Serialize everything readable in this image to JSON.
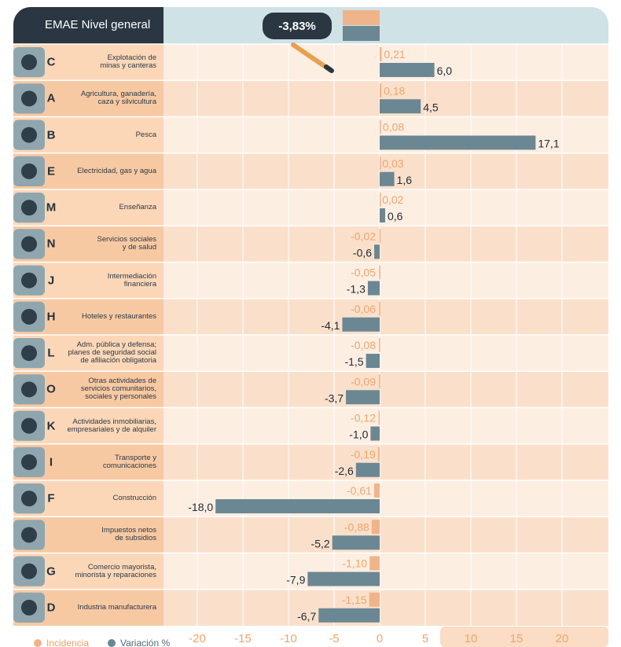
{
  "header": {
    "title": "EMAE Nivel general",
    "total": "-3,83%"
  },
  "legend": {
    "incidencia": "Incidencia",
    "variacion": "Variación %"
  },
  "colors": {
    "incidencia": "#f0b48a",
    "variacion": "#6b8793",
    "header_dark": "#2a3642",
    "header_light": "#cfe2e6"
  },
  "chart_data": {
    "type": "bar",
    "orientation": "horizontal",
    "categories": [
      {
        "letter": "C",
        "label": "Explotación de\nminas y canteras"
      },
      {
        "letter": "A",
        "label": "Agricultura, ganadería,\ncaza y silvicultura"
      },
      {
        "letter": "B",
        "label": "Pesca"
      },
      {
        "letter": "E",
        "label": "Electricidad, gas y agua"
      },
      {
        "letter": "M",
        "label": "Enseñanza"
      },
      {
        "letter": "N",
        "label": "Servicios sociales\ny de salud"
      },
      {
        "letter": "J",
        "label": "Intermediación\nfinanciera"
      },
      {
        "letter": "H",
        "label": "Hoteles y restaurantes"
      },
      {
        "letter": "L",
        "label": "Adm. pública y defensa;\nplanes de seguridad social\nde afiliación obligatoria"
      },
      {
        "letter": "O",
        "label": "Otras actividades de\nservicios comunitarios,\nsociales y personales"
      },
      {
        "letter": "K",
        "label": "Actividades inmobiliarias,\nempresariales y de alquiler"
      },
      {
        "letter": "I",
        "label": "Transporte y\ncomunicaciones"
      },
      {
        "letter": "F",
        "label": "Construcción"
      },
      {
        "letter": "",
        "label": "Impuestos netos\nde subsidios"
      },
      {
        "letter": "G",
        "label": "Comercio mayorista,\nminorista y reparaciones"
      },
      {
        "letter": "D",
        "label": "Industria manufacturera"
      }
    ],
    "series": [
      {
        "name": "Incidencia",
        "values": [
          0.21,
          0.18,
          0.08,
          0.03,
          0.02,
          -0.02,
          -0.05,
          -0.06,
          -0.08,
          -0.09,
          -0.12,
          -0.19,
          -0.61,
          -0.88,
          -1.1,
          -1.15
        ],
        "labels": [
          "0,21",
          "0,18",
          "0,08",
          "0,03",
          "0,02",
          "-0,02",
          "-0,05",
          "-0,06",
          "-0,08",
          "-0,09",
          "-0,12",
          "-0,19",
          "-0,61",
          "-0,88",
          "-1,10",
          "-1,15"
        ]
      },
      {
        "name": "Variación %",
        "values": [
          6.0,
          4.5,
          17.1,
          1.6,
          0.6,
          -0.6,
          -1.3,
          -4.1,
          -1.5,
          -3.7,
          -1.0,
          -2.6,
          -18.0,
          -5.2,
          -7.9,
          -6.7
        ],
        "labels": [
          "6,0",
          "4,5",
          "17,1",
          "1,6",
          "0,6",
          "-0,6",
          "-1,3",
          "-4,1",
          "-1,5",
          "-3,7",
          "-1,0",
          "-2,6",
          "-18,0",
          "-5,2",
          "-7,9",
          "-6,7"
        ]
      }
    ],
    "xlim": [
      -20,
      20
    ],
    "xticks": [
      -20,
      -15,
      -10,
      -5,
      0,
      5,
      10,
      15,
      20
    ],
    "grid": true
  }
}
